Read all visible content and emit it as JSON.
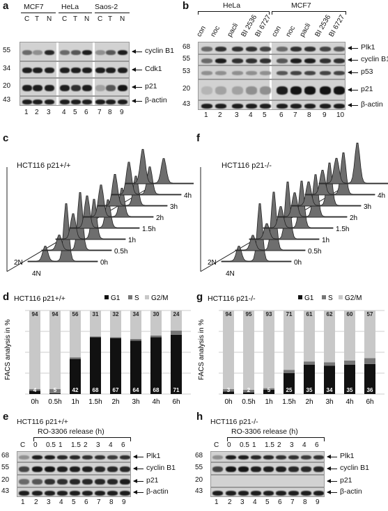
{
  "panels": {
    "a": {
      "label": "a",
      "groups": [
        "MCF7",
        "HeLa",
        "Saos-2"
      ],
      "conditions": [
        "C",
        "T",
        "N",
        "C",
        "T",
        "N",
        "C",
        "T",
        "N"
      ],
      "lanes": [
        "1",
        "2",
        "3",
        "4",
        "5",
        "6",
        "7",
        "8",
        "9"
      ],
      "mw": [
        "55",
        "34",
        "20",
        "43"
      ],
      "proteins": [
        "cyclin B1",
        "Cdk1",
        "p21",
        "β-actin"
      ]
    },
    "b": {
      "label": "b",
      "groups": [
        "HeLa",
        "MCF7"
      ],
      "conditions": [
        "con",
        "noc",
        "pacli",
        "BI 2536",
        "BI 6727",
        "con",
        "noc",
        "pacli",
        "BI 2536",
        "BI 6727"
      ],
      "lanes": [
        "1",
        "2",
        "3",
        "4",
        "5",
        "6",
        "7",
        "8",
        "9",
        "10"
      ],
      "mw": [
        "68",
        "55",
        "53",
        "20",
        "43"
      ],
      "proteins": [
        "Plk1",
        "cyclin B1",
        "p53",
        "p21",
        "β-actin"
      ]
    },
    "c": {
      "label": "c",
      "title": "HCT116 p21+/+",
      "times": [
        "0h",
        "0.5h",
        "1h",
        "1.5h",
        "2h",
        "3h",
        "4h",
        "6h"
      ],
      "dna": [
        "2N",
        "4N"
      ]
    },
    "f": {
      "label": "f",
      "title": "HCT116 p21-/-",
      "times": [
        "0h",
        "0.5h",
        "1h",
        "1.5h",
        "2h",
        "3h",
        "4h",
        "6h"
      ],
      "dna": [
        "2N",
        "4N"
      ]
    },
    "d": {
      "label": "d",
      "title": "HCT116 p21+/+",
      "ylabel": "FACS analysis in %",
      "legend": [
        "G1",
        "S",
        "G2/M"
      ],
      "g1_labels": [
        "4",
        "",
        "42",
        "68",
        "67",
        "64",
        "68",
        "71"
      ],
      "g2m_labels": [
        "94",
        "94",
        "56",
        "31",
        "32",
        "34",
        "30",
        "24"
      ],
      "s_labels_inline": [
        "",
        "5",
        "",
        "",
        "",
        "",
        "",
        ""
      ]
    },
    "g": {
      "label": "g",
      "title": "HCT116 p21-/-",
      "ylabel": "FACS analysis in %",
      "legend": [
        "G1",
        "S",
        "G2/M"
      ],
      "g1_labels": [
        "3",
        "2",
        "5",
        "25",
        "35",
        "34",
        "35",
        "36"
      ],
      "g2m_labels": [
        "94",
        "95",
        "93",
        "71",
        "61",
        "62",
        "60",
        "57"
      ]
    },
    "e": {
      "label": "e",
      "title": "HCT116 p21+/+",
      "release": "RO-3306 release (h)",
      "timepoints": [
        "C",
        "0",
        "0.5",
        "1",
        "1.5",
        "2",
        "3",
        "4",
        "6"
      ],
      "lanes": [
        "1",
        "2",
        "3",
        "4",
        "5",
        "6",
        "7",
        "8",
        "9"
      ],
      "mw": [
        "68",
        "55",
        "20",
        "43"
      ],
      "proteins": [
        "Plk1",
        "cyclin B1",
        "p21",
        "β-actin"
      ]
    },
    "h": {
      "label": "h",
      "title": "HCT116 p21-/-",
      "release": "RO-3306 release (h)",
      "timepoints": [
        "C",
        "0",
        "0.5",
        "1",
        "1.5",
        "2",
        "3",
        "4",
        "6"
      ],
      "lanes": [
        "1",
        "2",
        "3",
        "4",
        "5",
        "6",
        "7",
        "8",
        "9"
      ],
      "mw": [
        "68",
        "55",
        "20",
        "43"
      ],
      "proteins": [
        "Plk1",
        "cyclin B1",
        "p21",
        "β-actin"
      ]
    }
  },
  "chart_data": [
    {
      "type": "bar",
      "panel": "d",
      "title": "HCT116 p21+/+",
      "ylabel": "FACS analysis in %",
      "categories": [
        "0h",
        "0.5h",
        "1h",
        "1.5h",
        "2h",
        "3h",
        "4h",
        "6h"
      ],
      "series": [
        {
          "name": "G1",
          "values": [
            4,
            1,
            42,
            68,
            67,
            64,
            68,
            71
          ]
        },
        {
          "name": "S",
          "values": [
            2,
            5,
            2,
            1,
            1,
            2,
            2,
            5
          ]
        },
        {
          "name": "G2/M",
          "values": [
            94,
            94,
            56,
            31,
            32,
            34,
            30,
            24
          ]
        }
      ],
      "ylim": [
        0,
        100
      ],
      "stacked": true,
      "colors": {
        "G1": "#111111",
        "S": "#777777",
        "G2/M": "#c8c8c8"
      }
    },
    {
      "type": "bar",
      "panel": "g",
      "title": "HCT116 p21-/-",
      "ylabel": "FACS analysis in %",
      "categories": [
        "0h",
        "0.5h",
        "1h",
        "1.5h",
        "2h",
        "3h",
        "4h",
        "6h"
      ],
      "series": [
        {
          "name": "G1",
          "values": [
            3,
            2,
            5,
            25,
            35,
            34,
            35,
            36
          ]
        },
        {
          "name": "S",
          "values": [
            3,
            3,
            2,
            4,
            4,
            4,
            5,
            7
          ]
        },
        {
          "name": "G2/M",
          "values": [
            94,
            95,
            93,
            71,
            61,
            62,
            60,
            57
          ]
        }
      ],
      "ylim": [
        0,
        100
      ],
      "stacked": true,
      "colors": {
        "G1": "#111111",
        "S": "#777777",
        "G2/M": "#c8c8c8"
      }
    }
  ]
}
